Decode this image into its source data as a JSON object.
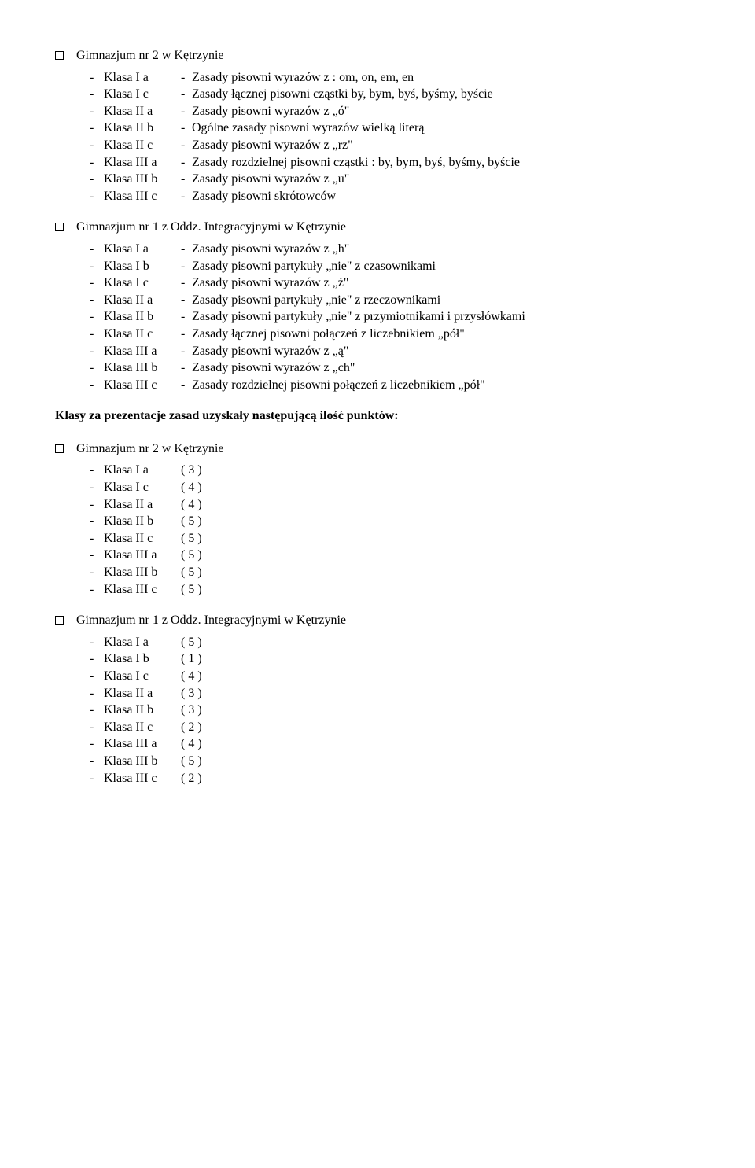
{
  "sections": {
    "s1": {
      "title": "Gimnazjum nr 2 w Kętrzynie",
      "rows": [
        {
          "klass": "Klasa I a",
          "rule": "Zasady pisowni wyrazów z : om, on, em, en"
        },
        {
          "klass": "Klasa I c",
          "rule": "Zasady łącznej pisowni cząstki by, bym, byś, byśmy, byście"
        },
        {
          "klass": "Klasa II a",
          "rule": "Zasady pisowni wyrazów z  „ó\""
        },
        {
          "klass": "Klasa II b",
          "rule": "Ogólne zasady pisowni wyrazów wielką literą"
        },
        {
          "klass": "Klasa II c",
          "rule": "Zasady pisowni wyrazów z „rz\""
        },
        {
          "klass": "Klasa III a",
          "rule": "Zasady rozdzielnej pisowni cząstki : by, bym, byś, byśmy, byście"
        },
        {
          "klass": "Klasa III b",
          "rule": "Zasady pisowni wyrazów z „u\""
        },
        {
          "klass": "Klasa III c",
          "rule": "Zasady pisowni skrótowców"
        }
      ]
    },
    "s2": {
      "title": "Gimnazjum nr 1 z Oddz. Integracyjnymi w Kętrzynie",
      "rows": [
        {
          "klass": "Klasa I a",
          "rule": "Zasady pisowni wyrazów z „h\""
        },
        {
          "klass": "Klasa I b",
          "rule": "Zasady pisowni partykuły „nie\" z czasownikami"
        },
        {
          "klass": "Klasa I c",
          "rule": "Zasady pisowni wyrazów z „ż\""
        },
        {
          "klass": "Klasa II a",
          "rule": "Zasady pisowni  partykuły „nie\" z rzeczownikami"
        },
        {
          "klass": "Klasa II b",
          "rule": "Zasady pisowni partykuły „nie\" z przymiotnikami i przysłówkami"
        },
        {
          "klass": "Klasa II c",
          "rule": "Zasady łącznej pisowni połączeń z liczebnikiem „pół\""
        },
        {
          "klass": "Klasa III a",
          "rule": "Zasady pisowni wyrazów z „ą\""
        },
        {
          "klass": "Klasa III b",
          "rule": "Zasady pisowni wyrazów z „ch\""
        },
        {
          "klass": "Klasa III c",
          "rule": "Zasady rozdzielnej pisowni połączeń z liczebnikiem „pół\""
        }
      ]
    }
  },
  "heading": "Klasy za prezentacje zasad uzyskały następującą ilość punktów:",
  "scores": {
    "g1": {
      "title": "Gimnazjum nr 2 w Kętrzynie",
      "rows": [
        {
          "klass": "Klasa I a",
          "score": "(  3  )"
        },
        {
          "klass": "Klasa I c",
          "score": "(  4  )"
        },
        {
          "klass": "Klasa II a",
          "score": "(  4  )"
        },
        {
          "klass": "Klasa II b",
          "score": "(  5  )"
        },
        {
          "klass": "Klasa II c",
          "score": "(  5  )"
        },
        {
          "klass": "Klasa III a",
          "score": "(  5  )"
        },
        {
          "klass": "Klasa III b",
          "score": "(  5  )"
        },
        {
          "klass": "Klasa III c",
          "score": "(  5  )"
        }
      ]
    },
    "g2": {
      "title": "Gimnazjum nr 1 z Oddz. Integracyjnymi w Kętrzynie",
      "rows": [
        {
          "klass": "Klasa I a",
          "score": "(  5  )"
        },
        {
          "klass": "Klasa I b",
          "score": "(  1  )"
        },
        {
          "klass": "Klasa I c",
          "score": "(  4  )"
        },
        {
          "klass": "Klasa II a",
          "score": "(  3  )"
        },
        {
          "klass": "Klasa II b",
          "score": "(  3  )"
        },
        {
          "klass": "Klasa II c",
          "score": "(  2  )"
        },
        {
          "klass": "Klasa III a",
          "score": "(  4  )"
        },
        {
          "klass": "Klasa III b",
          "score": "(  5  )"
        },
        {
          "klass": "Klasa III c",
          "score": "(  2  )"
        }
      ]
    }
  },
  "ui": {
    "dash": "-"
  }
}
